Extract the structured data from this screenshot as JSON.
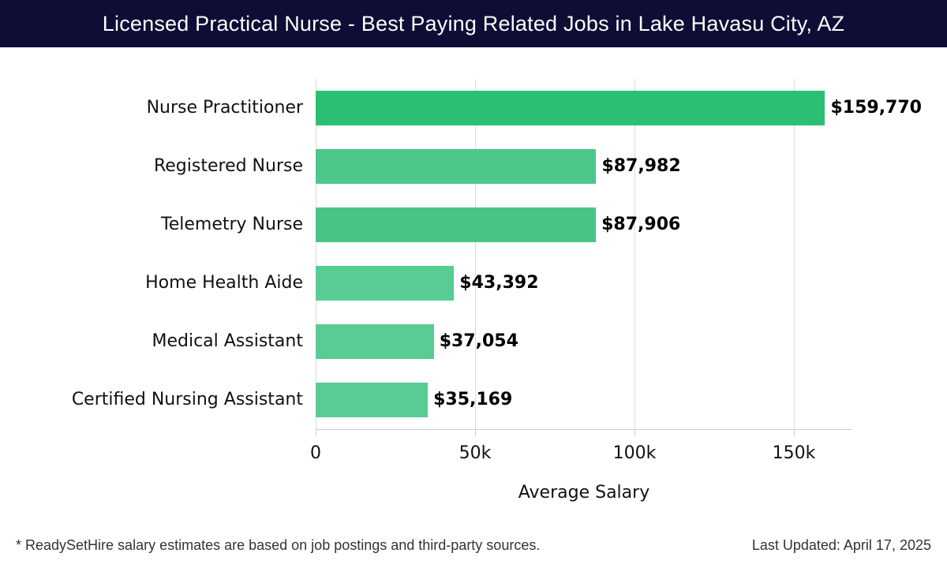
{
  "header": {
    "title": "Licensed Practical Nurse - Best Paying Related Jobs in Lake Havasu City, AZ"
  },
  "chart_data": {
    "type": "bar",
    "orientation": "horizontal",
    "title": "Licensed Practical Nurse - Best Paying Related Jobs in Lake Havasu City, AZ",
    "xlabel": "Average Salary",
    "ylabel": "",
    "categories": [
      "Nurse Practitioner",
      "Registered Nurse",
      "Telemetry Nurse",
      "Home Health Aide",
      "Medical Assistant",
      "Certified Nursing Assistant"
    ],
    "values": [
      159770,
      87982,
      87906,
      43392,
      37054,
      35169
    ],
    "value_labels": [
      "$159,770",
      "$87,982",
      "$87,906",
      "$43,392",
      "$37,054",
      "$35,169"
    ],
    "xticks": [
      "0",
      "50k",
      "100k",
      "150k"
    ],
    "xlim": [
      0,
      168000
    ],
    "grid": true,
    "colors": [
      "#2bbf74",
      "#4cc78a",
      "#47c587",
      "#58cc93",
      "#58cc93",
      "#58cc93"
    ]
  },
  "footer": {
    "note": "* ReadySetHire salary estimates are based on job postings and third-party sources.",
    "updated": "Last Updated: April 17, 2025"
  }
}
